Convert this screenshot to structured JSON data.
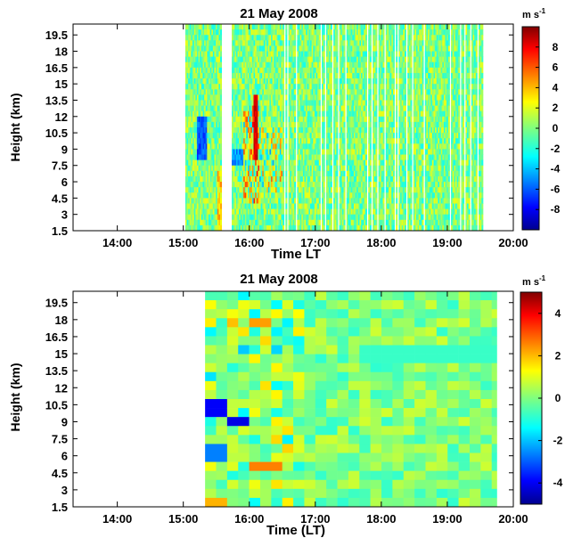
{
  "chart_data": [
    {
      "type": "heatmap",
      "title": "21 May 2008",
      "xlabel": "Time LT",
      "ylabel": "Height (km)",
      "x_ticks": [
        "14:00",
        "15:00",
        "16:00",
        "17:00",
        "18:00",
        "19:00",
        "20:00"
      ],
      "xlim_hours": [
        13.33,
        20.0
      ],
      "y_ticks": [
        "1.5",
        "3",
        "4.5",
        "6",
        "7.5",
        "9",
        "10.5",
        "12",
        "13.5",
        "15",
        "16.5",
        "18",
        "19.5"
      ],
      "ylim_km": [
        1.5,
        20.5
      ],
      "colorbar": {
        "unit": "m s",
        "unit_exp": "-1",
        "ticks": [
          "8",
          "6",
          "4",
          "2",
          "0",
          "-2",
          "-4",
          "-6",
          "-8"
        ],
        "range": [
          -10,
          10
        ],
        "colormap": "jet"
      },
      "data_coverage_hours": [
        15.03,
        19.53
      ],
      "data_gaps_hours": [
        [
          15.58,
          15.73
        ],
        [
          15.0,
          15.03
        ]
      ]
    },
    {
      "type": "heatmap",
      "title": "21 May 2008",
      "xlabel": "Time (LT)",
      "ylabel": "Height (km)",
      "x_ticks": [
        "14:00",
        "15:00",
        "16:00",
        "17:00",
        "18:00",
        "19:00",
        "20:00"
      ],
      "xlim_hours": [
        13.33,
        20.0
      ],
      "y_ticks": [
        "1.5",
        "3",
        "4.5",
        "6",
        "7.5",
        "9",
        "10.5",
        "12",
        "13.5",
        "15",
        "16.5",
        "18",
        "19.5"
      ],
      "ylim_km": [
        1.5,
        20.5
      ],
      "colorbar": {
        "unit": "m s",
        "unit_exp": "-1",
        "ticks": [
          "4",
          "2",
          "0",
          "-2",
          "-4"
        ],
        "range": [
          -5,
          5
        ],
        "colormap": "jet"
      },
      "data_coverage_hours": [
        15.33,
        19.75
      ]
    }
  ]
}
